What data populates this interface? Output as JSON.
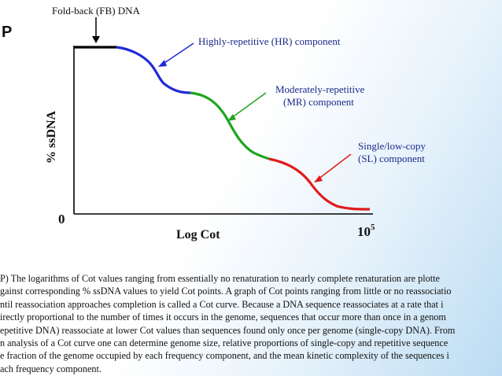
{
  "figure": {
    "panel_letter": "P",
    "fb_label": "Fold-back (FB) DNA",
    "hr_label": "Highly-repetitive (HR) component",
    "mr_label_line1": "Moderately-repetitive",
    "mr_label_line2": "(MR) component",
    "sl_label_line1": "Single/low-copy",
    "sl_label_line2": "(SL) component",
    "ylabel": "% ssDNA",
    "y_origin_label": "0",
    "xlabel": "Log Cot",
    "x_end_base": "10",
    "x_end_exp": "5"
  },
  "colors": {
    "fb": "#000000",
    "hr": "#1f2bd6",
    "mr": "#1ea51e",
    "sl": "#e01b1b",
    "arrow_hr": "#1f2bd6",
    "arrow_mr": "#1ea51e",
    "arrow_sl": "#e01b1b"
  },
  "caption_lines": [
    "P) The logarithms of Cot values ranging from essentially no renaturation to nearly complete renaturation are plotte",
    "gainst corresponding % ssDNA values to yield Cot points.  A graph of Cot points ranging from little or no reassociatio",
    "ntil reassociation approaches completion is called a Cot curve.  Because a DNA sequence reassociates at a rate that i",
    "irectly proportional to the number of times it occurs in the genome, sequences that occur more than once in a genom",
    "epetitive DNA) reassociate at lower Cot values than sequences found only once per genome (single-copy DNA).  From",
    "n analysis of a Cot curve one can determine genome size, relative proportions of single-copy and repetitive sequence",
    "e fraction of the genome occupied by each frequency component, and the mean kinetic complexity of the sequences i",
    "ach frequency component."
  ]
}
